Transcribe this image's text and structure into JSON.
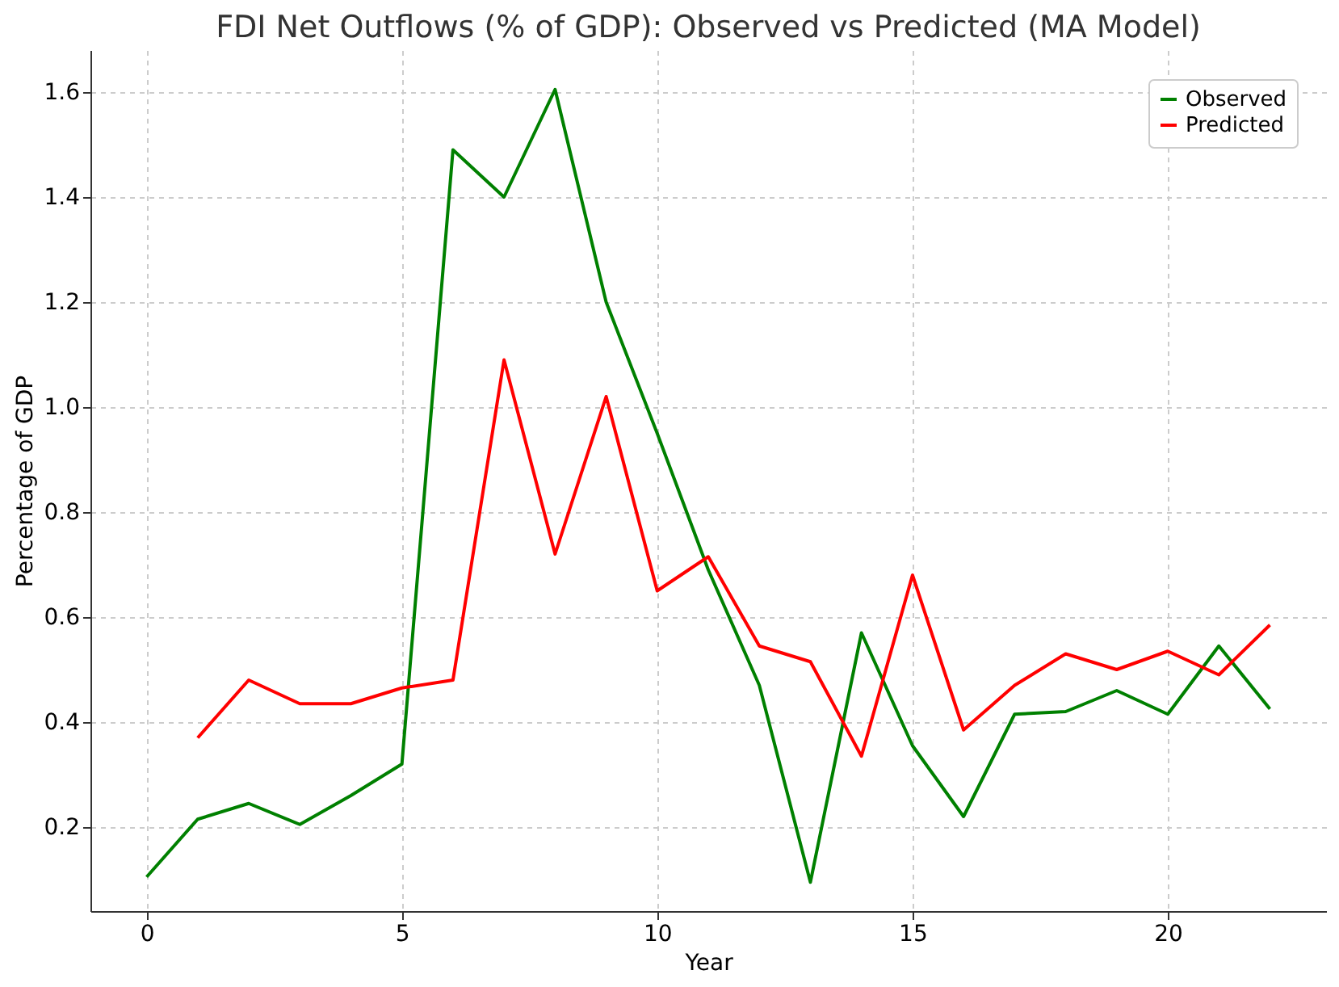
{
  "chart_data": {
    "type": "line",
    "title": "FDI Net Outflows (% of GDP): Observed vs Predicted (MA Model)",
    "xlabel": "Year",
    "ylabel": "Percentage of GDP",
    "x": [
      0,
      1,
      2,
      3,
      4,
      5,
      6,
      7,
      8,
      9,
      10,
      11,
      12,
      13,
      14,
      15,
      16,
      17,
      18,
      19,
      20,
      21,
      22
    ],
    "series": [
      {
        "name": "Observed",
        "color": "#008000",
        "values": [
          0.105,
          0.215,
          0.245,
          0.205,
          0.26,
          0.32,
          1.49,
          1.4,
          1.605,
          1.2,
          0.95,
          0.69,
          0.47,
          0.095,
          0.57,
          0.355,
          0.22,
          0.415,
          0.42,
          0.46,
          0.415,
          0.545,
          0.425
        ]
      },
      {
        "name": "Predicted",
        "color": "#ff0000",
        "values": [
          null,
          0.37,
          0.48,
          0.435,
          0.435,
          0.465,
          0.48,
          1.09,
          0.72,
          1.02,
          0.65,
          0.715,
          0.545,
          0.515,
          0.335,
          0.68,
          0.385,
          0.47,
          0.53,
          0.5,
          0.535,
          0.49,
          0.585
        ]
      }
    ],
    "xlim": [
      -1.1,
      23.1
    ],
    "ylim": [
      0.04,
      1.68
    ],
    "xticks": [
      0,
      5,
      10,
      15,
      20
    ],
    "yticks": [
      0.2,
      0.4,
      0.6,
      0.8,
      {
        "value": 1,
        "label": "1.0"
      },
      1.2,
      1.4,
      1.6
    ],
    "grid": true,
    "legend": "top right",
    "line_style": "solid",
    "marker": "none"
  }
}
